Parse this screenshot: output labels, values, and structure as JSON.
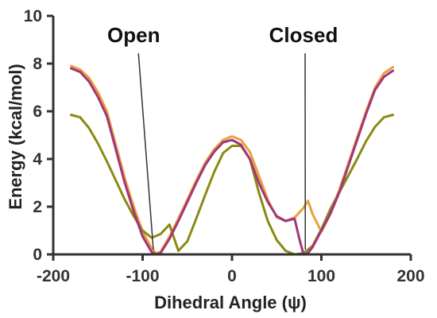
{
  "chart_data": {
    "type": "line",
    "title": "",
    "xlabel": "Dihedral Angle (ψ)",
    "ylabel": "Energy (kcal/mol)",
    "xlim": [
      -200,
      200
    ],
    "ylim": [
      0,
      10
    ],
    "xticks": [
      -200,
      -100,
      0,
      100,
      200
    ],
    "yticks": [
      0,
      2,
      4,
      6,
      8,
      10
    ],
    "grid": false,
    "legend": "none",
    "series": [
      {
        "color": "#e8a13a",
        "points": [
          [
            -180,
            7.9
          ],
          [
            -170,
            7.75
          ],
          [
            -160,
            7.4
          ],
          [
            -150,
            6.8
          ],
          [
            -140,
            6.0
          ],
          [
            -130,
            4.6
          ],
          [
            -120,
            3.2
          ],
          [
            -110,
            2.0
          ],
          [
            -100,
            0.95
          ],
          [
            -90,
            0.25
          ],
          [
            -85,
            0.05
          ],
          [
            -80,
            0.1
          ],
          [
            -70,
            0.75
          ],
          [
            -60,
            1.5
          ],
          [
            -50,
            2.3
          ],
          [
            -40,
            3.1
          ],
          [
            -30,
            3.85
          ],
          [
            -20,
            4.4
          ],
          [
            -10,
            4.8
          ],
          [
            0,
            4.95
          ],
          [
            10,
            4.8
          ],
          [
            20,
            4.3
          ],
          [
            30,
            3.3
          ],
          [
            40,
            2.3
          ],
          [
            50,
            1.55
          ],
          [
            60,
            1.4
          ],
          [
            70,
            1.55
          ],
          [
            80,
            1.95
          ],
          [
            85,
            2.25
          ],
          [
            90,
            1.7
          ],
          [
            100,
            0.95
          ],
          [
            110,
            1.7
          ],
          [
            120,
            2.7
          ],
          [
            130,
            3.8
          ],
          [
            140,
            4.9
          ],
          [
            150,
            6.0
          ],
          [
            160,
            7.0
          ],
          [
            170,
            7.6
          ],
          [
            180,
            7.85
          ]
        ]
      },
      {
        "color": "#8a8a12",
        "points": [
          [
            -180,
            5.85
          ],
          [
            -170,
            5.75
          ],
          [
            -160,
            5.3
          ],
          [
            -150,
            4.65
          ],
          [
            -140,
            3.9
          ],
          [
            -130,
            3.1
          ],
          [
            -120,
            2.3
          ],
          [
            -110,
            1.6
          ],
          [
            -100,
            1.0
          ],
          [
            -90,
            0.7
          ],
          [
            -80,
            0.85
          ],
          [
            -70,
            1.25
          ],
          [
            -60,
            0.15
          ],
          [
            -50,
            0.55
          ],
          [
            -40,
            1.5
          ],
          [
            -30,
            2.5
          ],
          [
            -20,
            3.45
          ],
          [
            -10,
            4.25
          ],
          [
            0,
            4.55
          ],
          [
            10,
            4.55
          ],
          [
            20,
            4.0
          ],
          [
            30,
            2.6
          ],
          [
            40,
            1.4
          ],
          [
            50,
            0.6
          ],
          [
            60,
            0.15
          ],
          [
            70,
            0.0
          ],
          [
            80,
            0.05
          ],
          [
            90,
            0.35
          ],
          [
            100,
            1.05
          ],
          [
            110,
            1.9
          ],
          [
            120,
            2.6
          ],
          [
            130,
            3.3
          ],
          [
            140,
            4.0
          ],
          [
            150,
            4.75
          ],
          [
            160,
            5.35
          ],
          [
            170,
            5.75
          ],
          [
            180,
            5.85
          ]
        ]
      },
      {
        "color": "#a3357a",
        "points": [
          [
            -180,
            7.8
          ],
          [
            -170,
            7.65
          ],
          [
            -160,
            7.25
          ],
          [
            -150,
            6.6
          ],
          [
            -140,
            5.8
          ],
          [
            -130,
            4.4
          ],
          [
            -120,
            3.0
          ],
          [
            -110,
            1.8
          ],
          [
            -100,
            0.75
          ],
          [
            -90,
            0.1
          ],
          [
            -85,
            0.0
          ],
          [
            -80,
            0.05
          ],
          [
            -70,
            0.65
          ],
          [
            -60,
            1.4
          ],
          [
            -50,
            2.2
          ],
          [
            -40,
            3.0
          ],
          [
            -30,
            3.75
          ],
          [
            -20,
            4.3
          ],
          [
            -10,
            4.7
          ],
          [
            0,
            4.8
          ],
          [
            10,
            4.6
          ],
          [
            20,
            4.0
          ],
          [
            30,
            3.0
          ],
          [
            40,
            2.2
          ],
          [
            50,
            1.6
          ],
          [
            60,
            1.4
          ],
          [
            70,
            1.5
          ],
          [
            75,
            0.7
          ],
          [
            80,
            0.0
          ],
          [
            85,
            0.05
          ],
          [
            90,
            0.3
          ],
          [
            100,
            1.0
          ],
          [
            110,
            1.7
          ],
          [
            120,
            2.6
          ],
          [
            130,
            3.7
          ],
          [
            140,
            4.8
          ],
          [
            150,
            5.9
          ],
          [
            160,
            6.9
          ],
          [
            170,
            7.45
          ],
          [
            180,
            7.7
          ]
        ]
      }
    ],
    "annotations": [
      {
        "text": "Open",
        "label_at": [
          -110,
          8.9
        ],
        "arrow_to": [
          -88,
          0.2
        ]
      },
      {
        "text": "Closed",
        "label_at": [
          80,
          8.9
        ],
        "arrow_to": [
          82,
          0.2
        ]
      }
    ]
  }
}
